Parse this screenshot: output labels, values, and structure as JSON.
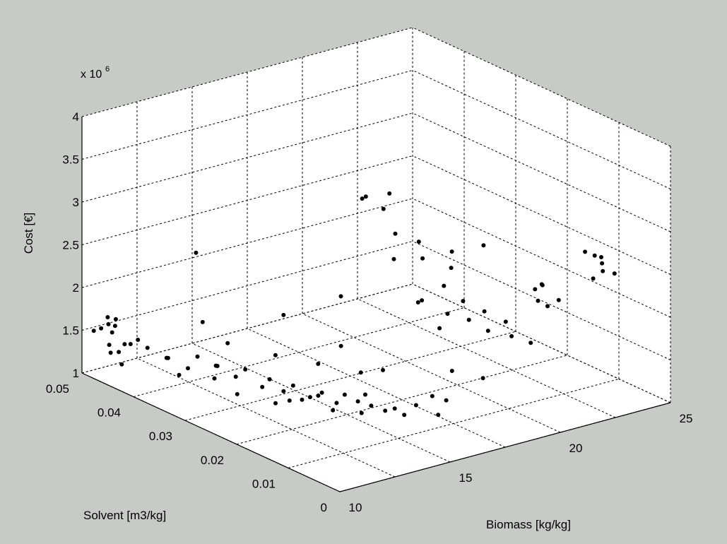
{
  "chart_data": {
    "type": "scatter",
    "title": "",
    "xlabel": "Biomass [kg/kg]",
    "ylabel": "Solvent [m3/kg]",
    "zlabel": "Cost [€]",
    "exponent_base": "x 10",
    "exponent_power": "6",
    "xlim": [
      10,
      25
    ],
    "ylim": [
      0,
      0.05
    ],
    "zlim": [
      1,
      4
    ],
    "xticks": [
      "10",
      "15",
      "20",
      "25"
    ],
    "yticks": [
      "0",
      "0.01",
      "0.02",
      "0.03",
      "0.04",
      "0.05"
    ],
    "zticks": [
      "1",
      "1.5",
      "2",
      "2.5",
      "3",
      "3.5",
      "4"
    ],
    "grid": true,
    "marker_color": "#000000",
    "background_color": "#c7cbc6",
    "axes_color": "#ffffff",
    "series": [
      {
        "values": [
          [
            10.3,
            0.046,
            1.42
          ],
          [
            10.4,
            0.048,
            1.55
          ],
          [
            10.5,
            0.047,
            1.62
          ],
          [
            10.6,
            0.046,
            1.7
          ],
          [
            10.3,
            0.049,
            1.5
          ],
          [
            10.5,
            0.045,
            1.35
          ],
          [
            10.8,
            0.044,
            1.45
          ],
          [
            10.6,
            0.047,
            1.28
          ],
          [
            10.9,
            0.043,
            1.52
          ],
          [
            10.2,
            0.045,
            1.6
          ],
          [
            11.0,
            0.046,
            1.38
          ],
          [
            10.7,
            0.048,
            1.66
          ],
          [
            11.1,
            0.042,
            1.44
          ],
          [
            10.4,
            0.044,
            1.24
          ],
          [
            10.8,
            0.047,
            1.58
          ],
          [
            11.5,
            0.04,
            1.35
          ],
          [
            12.0,
            0.038,
            1.25
          ],
          [
            12.5,
            0.035,
            1.18
          ],
          [
            11.8,
            0.041,
            1.3
          ],
          [
            12.2,
            0.037,
            1.4
          ],
          [
            13.0,
            0.033,
            1.22
          ],
          [
            13.5,
            0.03,
            1.15
          ],
          [
            12.8,
            0.036,
            1.28
          ],
          [
            14.0,
            0.028,
            1.12
          ],
          [
            13.2,
            0.032,
            1.32
          ],
          [
            14.5,
            0.025,
            1.1
          ],
          [
            15.0,
            0.022,
            1.08
          ],
          [
            14.2,
            0.027,
            1.2
          ],
          [
            15.5,
            0.02,
            1.12
          ],
          [
            14.8,
            0.024,
            1.16
          ],
          [
            15.2,
            0.018,
            1.06
          ],
          [
            15.8,
            0.016,
            1.1
          ],
          [
            14.6,
            0.021,
            1.05
          ],
          [
            13.8,
            0.026,
            1.08
          ],
          [
            16.0,
            0.015,
            1.14
          ],
          [
            12.6,
            0.031,
            1.1
          ],
          [
            13.6,
            0.029,
            1.26
          ],
          [
            14.4,
            0.023,
            1.18
          ],
          [
            15.6,
            0.019,
            1.22
          ],
          [
            16.2,
            0.014,
            1.08
          ],
          [
            11.6,
            0.038,
            1.2
          ],
          [
            12.4,
            0.034,
            1.36
          ],
          [
            13.4,
            0.027,
            1.05
          ],
          [
            14.9,
            0.02,
            1.24
          ],
          [
            15.4,
            0.017,
            1.16
          ],
          [
            16.5,
            0.013,
            1.2
          ],
          [
            17.0,
            0.012,
            1.3
          ],
          [
            16.8,
            0.01,
            1.15
          ],
          [
            17.4,
            0.011,
            1.25
          ],
          [
            13.9,
            0.024,
            1.14
          ],
          [
            14.1,
            0.03,
            1.48
          ],
          [
            13.1,
            0.035,
            1.55
          ],
          [
            15.1,
            0.026,
            1.42
          ],
          [
            16.1,
            0.022,
            1.36
          ],
          [
            12.9,
            0.039,
            1.7
          ],
          [
            14.7,
            0.031,
            1.88
          ],
          [
            15.9,
            0.025,
            1.6
          ],
          [
            16.4,
            0.019,
            1.45
          ],
          [
            13.3,
            0.042,
            2.4
          ],
          [
            16.6,
            0.028,
            2.05
          ],
          [
            18.2,
            0.03,
            3.05
          ],
          [
            18.5,
            0.032,
            2.95
          ],
          [
            18.8,
            0.028,
            3.1
          ],
          [
            19.0,
            0.03,
            2.85
          ],
          [
            18.6,
            0.026,
            2.7
          ],
          [
            18.3,
            0.025,
            2.45
          ],
          [
            18.9,
            0.022,
            2.5
          ],
          [
            19.2,
            0.024,
            2.62
          ],
          [
            18.4,
            0.02,
            2.1
          ],
          [
            18.7,
            0.022,
            2.0
          ],
          [
            19.1,
            0.018,
            1.95
          ],
          [
            18.5,
            0.017,
            1.85
          ],
          [
            19.4,
            0.02,
            2.2
          ],
          [
            19.6,
            0.016,
            1.9
          ],
          [
            19.8,
            0.018,
            2.05
          ],
          [
            20.0,
            0.014,
            1.8
          ],
          [
            20.3,
            0.016,
            1.95
          ],
          [
            20.6,
            0.012,
            1.75
          ],
          [
            20.8,
            0.014,
            1.85
          ],
          [
            21.0,
            0.01,
            1.7
          ],
          [
            19.3,
            0.012,
            1.35
          ],
          [
            18.6,
            0.015,
            1.4
          ],
          [
            20.2,
            0.022,
            2.3
          ],
          [
            20.7,
            0.024,
            2.4
          ],
          [
            21.2,
            0.02,
            2.55
          ],
          [
            22.5,
            0.015,
            1.95
          ],
          [
            22.6,
            0.016,
            2.05
          ],
          [
            22.7,
            0.014,
            1.9
          ],
          [
            23.8,
            0.008,
            2.4
          ],
          [
            23.9,
            0.01,
            2.52
          ],
          [
            24.0,
            0.009,
            2.45
          ],
          [
            24.1,
            0.007,
            2.38
          ],
          [
            23.7,
            0.011,
            2.55
          ],
          [
            24.2,
            0.01,
            2.48
          ],
          [
            23.6,
            0.009,
            2.3
          ],
          [
            21.8,
            0.008,
            2.2
          ],
          [
            21.5,
            0.01,
            2.35
          ],
          [
            22.0,
            0.012,
            2.25
          ]
        ]
      }
    ]
  }
}
